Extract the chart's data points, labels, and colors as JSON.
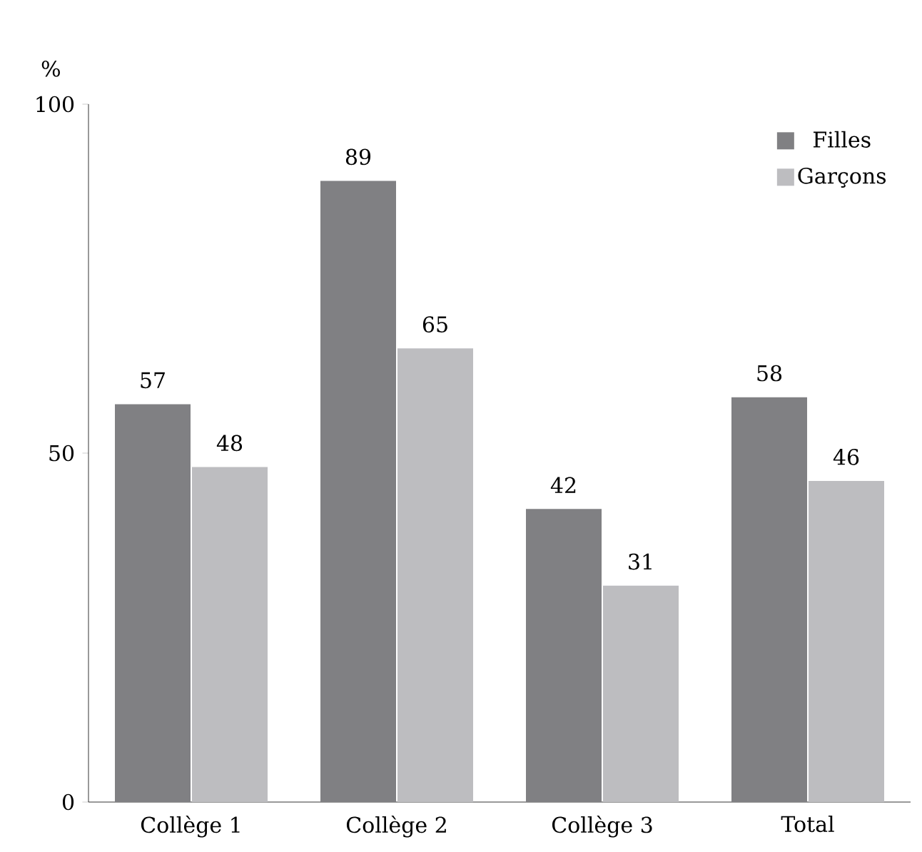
{
  "chart_data": {
    "type": "bar",
    "ylabel": "%",
    "categories": [
      "Collège 1",
      "Collège 2",
      "Collège 3",
      "Total"
    ],
    "series": [
      {
        "name": "Filles",
        "color": "#808083",
        "values": [
          57,
          89,
          42,
          58
        ]
      },
      {
        "name": "Garçons",
        "color": "#bdbdc0",
        "values": [
          48,
          65,
          31,
          46
        ]
      }
    ],
    "ylim": [
      0,
      100
    ],
    "yticks": [
      0,
      50,
      100
    ],
    "data_labels": true,
    "legend": "top right",
    "grid": false
  }
}
